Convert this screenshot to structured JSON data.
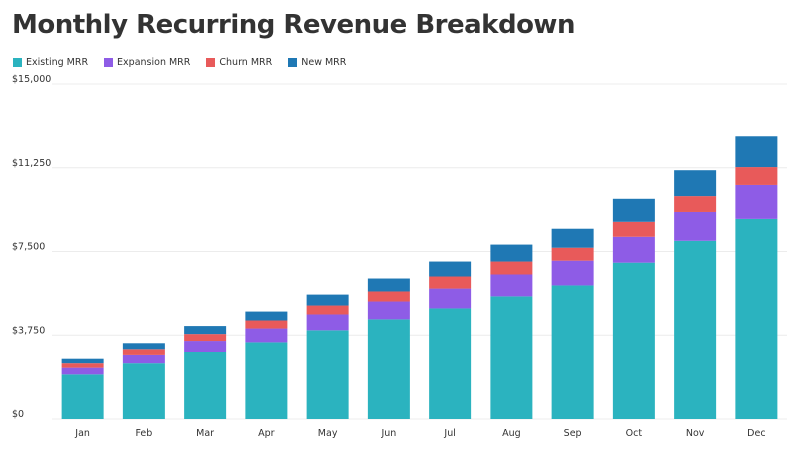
{
  "chart_data": {
    "type": "bar",
    "stacked": true,
    "title": "Monthly Recurring Revenue Breakdown",
    "categories": [
      "Jan",
      "Feb",
      "Mar",
      "Apr",
      "May",
      "Jun",
      "Jul",
      "Aug",
      "Sep",
      "Oct",
      "Nov",
      "Dec"
    ],
    "series": [
      {
        "name": "Existing MRR",
        "color": "#2bb3bf",
        "values": [
          2000,
          2500,
          3000,
          3430,
          3970,
          4460,
          4950,
          5490,
          5980,
          7000,
          7980,
          8960
        ]
      },
      {
        "name": "Expansion MRR",
        "color": "#8e5ce6",
        "values": [
          300,
          370,
          490,
          620,
          710,
          800,
          890,
          980,
          1110,
          1160,
          1290,
          1520
        ]
      },
      {
        "name": "Churn MRR",
        "color": "#e85a5a",
        "values": [
          200,
          250,
          310,
          360,
          400,
          450,
          540,
          580,
          580,
          670,
          710,
          800
        ]
      },
      {
        "name": "New MRR",
        "color": "#1f78b4",
        "values": [
          200,
          270,
          360,
          400,
          490,
          580,
          670,
          760,
          850,
          1030,
          1160,
          1380
        ]
      }
    ],
    "ylim": [
      0,
      15000
    ],
    "yticks": [
      0,
      3750,
      7500,
      11250,
      15000
    ],
    "ytick_labels": [
      "$0",
      "$3,750",
      "$7,500",
      "$11,250",
      "$15,000"
    ],
    "grid": true,
    "legend": "top-left",
    "xlabel": "",
    "ylabel": ""
  }
}
